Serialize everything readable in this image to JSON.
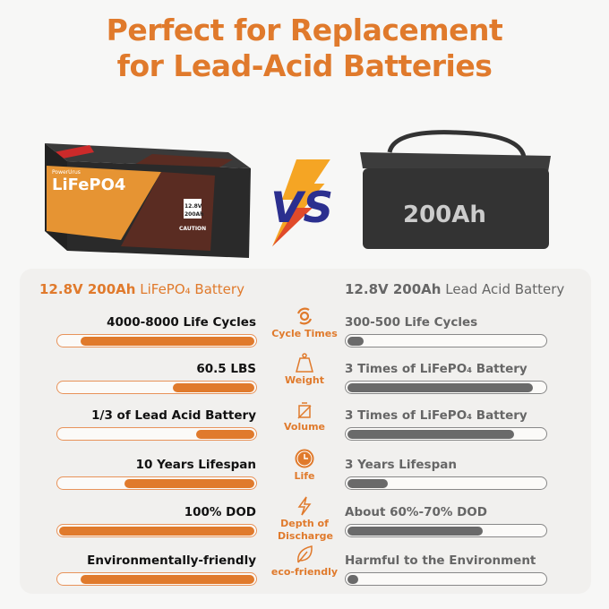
{
  "title": {
    "line1": "Perfect for Replacement",
    "line2": "for Lead-Acid Batteries"
  },
  "products": {
    "left": {
      "spec": "12.8V 200Ah",
      "type": "LiFePO₄ Battery",
      "image_text": {
        "brand": "PowerUrus",
        "chem": "LiFePO4",
        "voltage": "12.8V",
        "capacity": "200Ah",
        "caution": "CAUTION"
      }
    },
    "vs": "VS",
    "right": {
      "spec": "12.8V 200Ah",
      "type": "Lead Acid Battery",
      "image_text": "200Ah"
    }
  },
  "colors": {
    "accent": "#e07a2c",
    "gray_bar": "#6a6a6a",
    "panel": "#f1f0ee"
  },
  "rows": [
    {
      "metric": "Cycle Times",
      "icon": "cycle-icon",
      "left": "4000-8000 Life Cycles",
      "left_fill": 0.89,
      "right": "300-500 Life Cycles",
      "right_fill": 0.1
    },
    {
      "metric": "Weight",
      "icon": "weight-icon",
      "left": "60.5 LBS",
      "left_fill": 0.43,
      "right": "3 Times of LiFePO₄ Battery",
      "right_fill": 0.94
    },
    {
      "metric": "Volume",
      "icon": "volume-icon",
      "left": "1/3 of Lead Acid Battery",
      "left_fill": 0.31,
      "right": "3 Times of LiFePO₄ Battery",
      "right_fill": 0.85
    },
    {
      "metric": "Life",
      "icon": "clock-icon",
      "left": "10 Years Lifespan",
      "left_fill": 0.67,
      "right": "3 Years Lifespan",
      "right_fill": 0.22
    },
    {
      "metric": "Depth of Discharge",
      "icon": "lightning-icon",
      "left": "100% DOD",
      "left_fill": 1.0,
      "right": "About 60%-70% DOD",
      "right_fill": 0.69
    },
    {
      "metric": "eco-friendly",
      "icon": "leaf-icon",
      "left": "Environmentally-friendly",
      "left_fill": 0.89,
      "right": "Harmful to the Environment",
      "right_fill": 0.07
    }
  ]
}
